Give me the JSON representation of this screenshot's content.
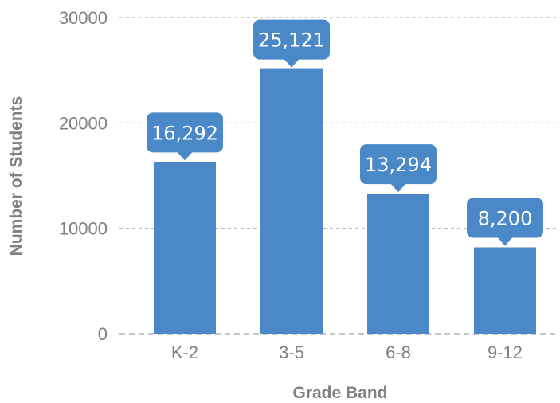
{
  "chart_data": {
    "type": "bar",
    "categories": [
      "K-2",
      "3-5",
      "6-8",
      "9-12"
    ],
    "values": [
      16292,
      25121,
      13294,
      8200
    ],
    "data_labels": [
      "16,292",
      "25,121",
      "13,294",
      "8,200"
    ],
    "xlabel": "Grade Band",
    "ylabel": "Number of Students",
    "ylim": [
      0,
      30000
    ],
    "yticks": [
      0,
      10000,
      20000,
      30000
    ],
    "ytick_labels": [
      "0",
      "10000",
      "20000",
      "30000"
    ],
    "grid": true,
    "legend": "none",
    "bar_color": "#4a88c8",
    "grid_color": "#b3b3b3",
    "text_color": "#808080"
  }
}
